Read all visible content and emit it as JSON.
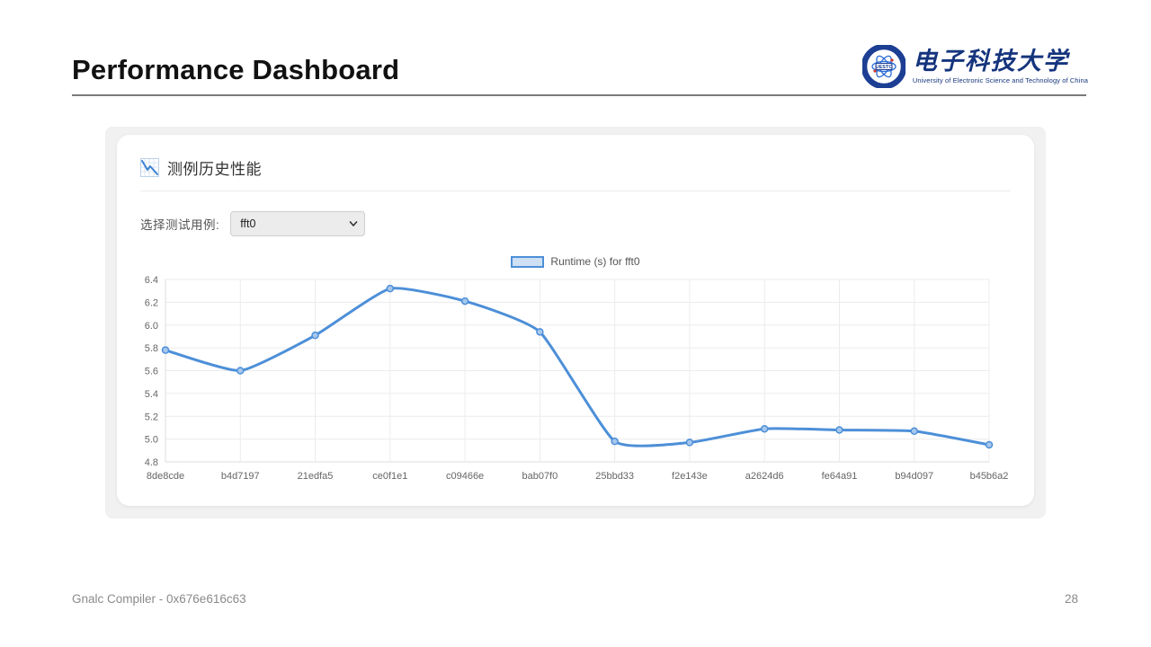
{
  "page": {
    "title": "Performance Dashboard",
    "footer_left": "Gnalc Compiler - 0x676e616c63",
    "page_number": "28"
  },
  "logo": {
    "emblem_text": "UESTC",
    "cn_name": "电子科技大学",
    "en_name": "University of Electronic Science and Technology of China"
  },
  "card": {
    "header": "测例历史性能",
    "select_label": "选择测试用例:",
    "select_value": "fft0"
  },
  "chart_data": {
    "type": "line",
    "legend": "Runtime (s) for fft0",
    "legend_position": "top",
    "categories": [
      "8de8cde",
      "b4d7197",
      "21edfa5",
      "ce0f1e1",
      "c09466e",
      "bab07f0",
      "25bbd33",
      "f2e143e",
      "a2624d6",
      "fe64a91",
      "b94d097",
      "b45b6a2"
    ],
    "values": [
      5.78,
      5.6,
      5.91,
      6.32,
      6.21,
      5.94,
      4.98,
      4.97,
      5.09,
      5.08,
      5.07,
      4.95
    ],
    "xlabel": "",
    "ylabel": "",
    "ylim": [
      4.8,
      6.4
    ],
    "ytick_step": 0.2,
    "grid": true,
    "colors": {
      "line": "#4d8fd8",
      "point_fill": "#a6c8ec",
      "legend_fill": "#cfe0f4",
      "grid": "#ececec",
      "axis": "#dcdcdc",
      "tick": "#666666"
    }
  }
}
